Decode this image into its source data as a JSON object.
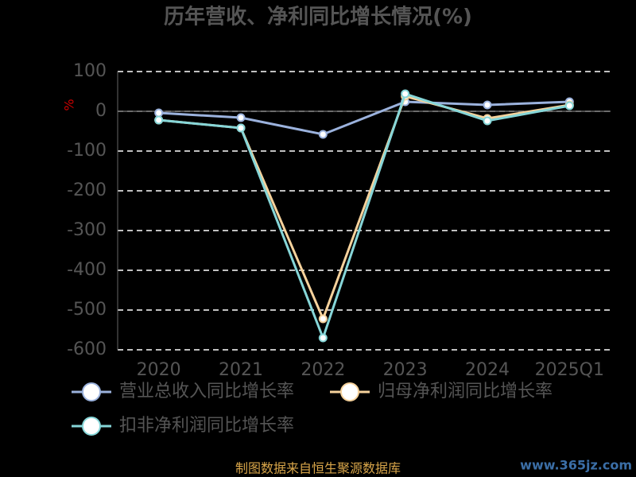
{
  "chart_data": {
    "type": "line",
    "title": "历年营收、净利同比增长情况(%)",
    "y_label": "%",
    "categories": [
      "2020",
      "2021",
      "2022",
      "2023",
      "2024",
      "2025Q1"
    ],
    "series": [
      {
        "name": "营业总收入同比增长率",
        "color": "#9bb2dd",
        "values": [
          -4,
          -16,
          -58,
          24,
          16,
          24
        ]
      },
      {
        "name": "归母净利润同比增长率",
        "color": "#f6d29c",
        "values": [
          -22,
          -42,
          -522,
          38,
          -18,
          16
        ]
      },
      {
        "name": "扣非净利润同比增长率",
        "color": "#86d6d8",
        "values": [
          -22,
          -42,
          -570,
          44,
          -24,
          14
        ]
      }
    ],
    "ylim": [
      -600,
      100
    ],
    "yticks": [
      -600,
      -500,
      -400,
      -300,
      -200,
      -100,
      0,
      100
    ],
    "grid": true,
    "source": "制图数据来自恒生聚源数据库",
    "watermark": "www.365jz.com"
  }
}
